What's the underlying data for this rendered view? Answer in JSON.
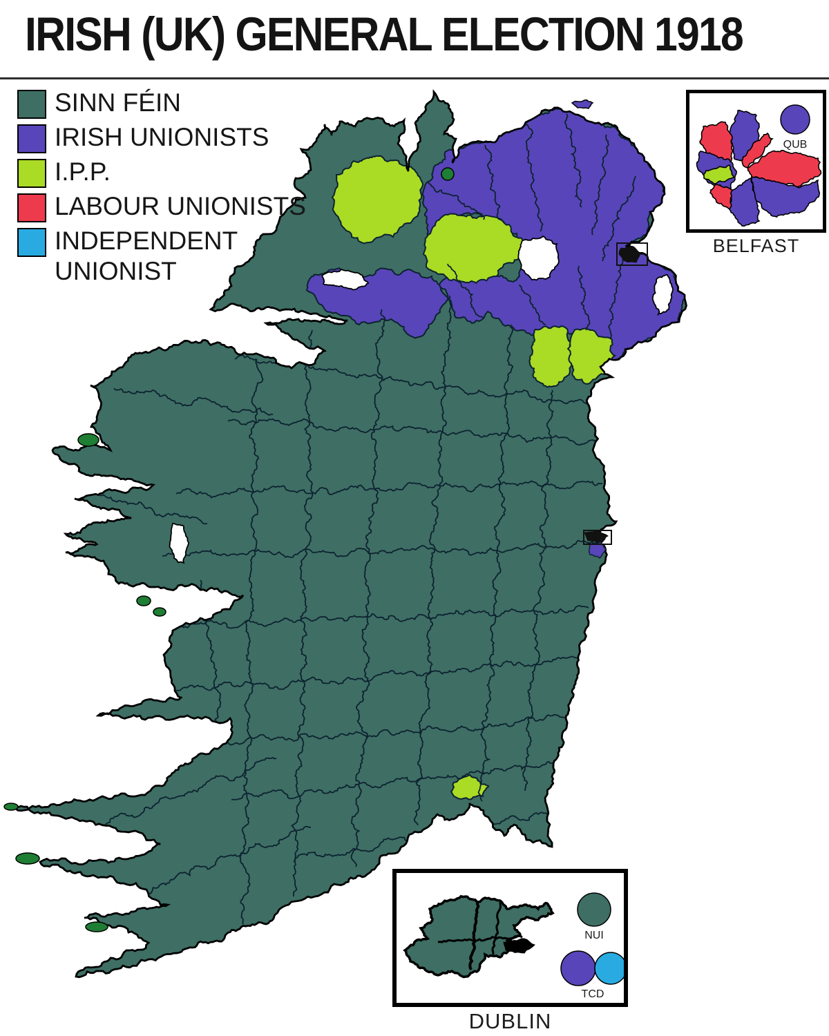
{
  "title": "IRISH (UK) GENERAL ELECTION 1918",
  "legend": {
    "items": [
      {
        "id": "sinn-fein",
        "label": "SINN FÉIN",
        "color": "#3E6E64"
      },
      {
        "id": "irish-unionists",
        "label": "IRISH UNIONISTS",
        "color": "#5845B9"
      },
      {
        "id": "ipp",
        "label": "I.P.P.",
        "color": "#AADB25"
      },
      {
        "id": "labour-unionists",
        "label": "LABOUR UNIONISTS",
        "color": "#ED3B4D"
      },
      {
        "id": "independent-unionist",
        "label": "INDEPENDENT UNIONIST",
        "color": "#29ABE2"
      }
    ]
  },
  "map": {
    "sea_color": "#FFFFFF",
    "lake_color": "#FFFFFF",
    "border_color": "#0D2230",
    "outline_color": "#000000",
    "small_island_color": "#1E7E34",
    "city_marker_color": "#111111"
  },
  "insets": {
    "belfast": {
      "title": "BELFAST",
      "university_circles": [
        {
          "label": "QUB",
          "parties": [
            "irish-unionists"
          ]
        }
      ]
    },
    "dublin": {
      "title": "DUBLIN",
      "university_circles": [
        {
          "label": "NUI",
          "parties": [
            "sinn-fein"
          ]
        },
        {
          "label": "TCD",
          "parties": [
            "irish-unionists",
            "independent-unionist"
          ]
        }
      ]
    }
  }
}
